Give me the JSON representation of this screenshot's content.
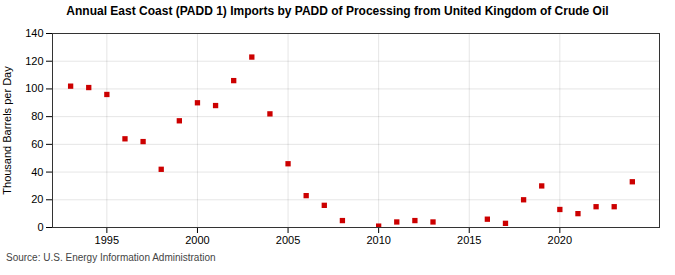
{
  "chart_data": {
    "type": "scatter",
    "title": "Annual East Coast (PADD 1) Imports by PADD of Processing from United Kingdom of Crude Oil",
    "ylabel": "Thousand Barrels per Day",
    "source": "Source: U.S. Energy Information Administration",
    "x": [
      1993,
      1994,
      1995,
      1996,
      1997,
      1998,
      1999,
      2000,
      2001,
      2002,
      2003,
      2004,
      2005,
      2006,
      2007,
      2008,
      2010,
      2011,
      2012,
      2013,
      2016,
      2017,
      2018,
      2019,
      2020,
      2021,
      2022,
      2023,
      2024
    ],
    "values": [
      102,
      101,
      96,
      64,
      62,
      42,
      77,
      90,
      88,
      106,
      123,
      82,
      46,
      23,
      16,
      5,
      1,
      4,
      5,
      4,
      6,
      3,
      20,
      30,
      13,
      10,
      15,
      15,
      33
    ],
    "color": "#cc0000",
    "marker": "square",
    "xlim": [
      1992,
      2025.5
    ],
    "ylim": [
      0,
      140
    ],
    "xticks": [
      1995,
      2000,
      2005,
      2010,
      2015,
      2020
    ],
    "yticks": [
      0,
      20,
      40,
      60,
      80,
      100,
      120,
      140
    ],
    "grid": true
  }
}
